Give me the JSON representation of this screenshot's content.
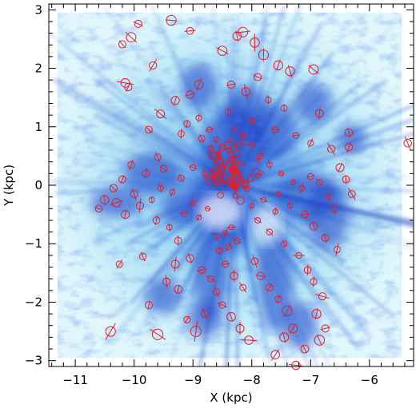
{
  "chart_data": {
    "type": "scatter",
    "xlabel": "X (kpc)",
    "ylabel": "Y (kpc)",
    "xlim": [
      -11.45,
      -5.25
    ],
    "ylim": [
      -3.1,
      3.1
    ],
    "xticks": [
      -11,
      -10,
      -9,
      -8,
      -7,
      -6
    ],
    "yticks": [
      -3,
      -2,
      -1,
      0,
      1,
      2,
      3
    ],
    "xtick_labels": [
      "−11",
      "−10",
      "−9",
      "−8",
      "−7",
      "−6"
    ],
    "ytick_labels": [
      "−3",
      "−2",
      "−1",
      "0",
      "1",
      "2",
      "3"
    ],
    "background": "Blue density map of interstellar dust, brightest near the Sun at (-8.3, 0)",
    "marker_color": "#e0202a",
    "map_colors": {
      "light": "#dff6fb",
      "mid": "#7fd0ee",
      "dark": "#1a3fc8",
      "core": "#0a1a9a"
    },
    "sun_position": [
      -8.3,
      0.0
    ],
    "points": [
      {
        "x": -9.93,
        "y": 2.76
      },
      {
        "x": -9.37,
        "y": 2.82
      },
      {
        "x": -9.05,
        "y": 2.64
      },
      {
        "x": -10.05,
        "y": 2.53
      },
      {
        "x": -10.2,
        "y": 2.41
      },
      {
        "x": -9.68,
        "y": 2.05
      },
      {
        "x": -10.15,
        "y": 1.75
      },
      {
        "x": -10.1,
        "y": 1.68
      },
      {
        "x": -9.55,
        "y": 1.22
      },
      {
        "x": -9.3,
        "y": 1.45
      },
      {
        "x": -9.05,
        "y": 1.55
      },
      {
        "x": -8.9,
        "y": 1.72
      },
      {
        "x": -8.5,
        "y": 2.3
      },
      {
        "x": -8.15,
        "y": 2.62
      },
      {
        "x": -8.25,
        "y": 2.55
      },
      {
        "x": -7.95,
        "y": 2.44
      },
      {
        "x": -7.8,
        "y": 2.23
      },
      {
        "x": -7.55,
        "y": 2.05
      },
      {
        "x": -7.35,
        "y": 1.95
      },
      {
        "x": -6.95,
        "y": 1.98
      },
      {
        "x": -7.9,
        "y": 1.85
      },
      {
        "x": -8.35,
        "y": 1.72
      },
      {
        "x": -8.1,
        "y": 1.6
      },
      {
        "x": -7.72,
        "y": 1.46
      },
      {
        "x": -7.45,
        "y": 1.32
      },
      {
        "x": -6.85,
        "y": 1.23
      },
      {
        "x": -6.35,
        "y": 0.9
      },
      {
        "x": -8.4,
        "y": 1.25
      },
      {
        "x": -8.0,
        "y": 1.1
      },
      {
        "x": -7.6,
        "y": 0.95
      },
      {
        "x": -7.25,
        "y": 0.85
      },
      {
        "x": -7.0,
        "y": 0.72
      },
      {
        "x": -6.65,
        "y": 0.62
      },
      {
        "x": -9.75,
        "y": 0.95
      },
      {
        "x": -9.2,
        "y": 0.88
      },
      {
        "x": -8.85,
        "y": 0.8
      },
      {
        "x": -8.7,
        "y": 0.62
      },
      {
        "x": -8.55,
        "y": 0.5
      },
      {
        "x": -8.45,
        "y": 0.38
      },
      {
        "x": -8.35,
        "y": 0.28
      },
      {
        "x": -8.25,
        "y": 0.18
      },
      {
        "x": -8.2,
        "y": 0.1
      },
      {
        "x": -8.15,
        "y": 0.02
      },
      {
        "x": -8.1,
        "y": -0.05
      },
      {
        "x": -8.28,
        "y": -0.08
      },
      {
        "x": -8.5,
        "y": 0.05
      },
      {
        "x": -8.65,
        "y": 0.12
      },
      {
        "x": -8.8,
        "y": 0.2
      },
      {
        "x": -9.0,
        "y": 0.3
      },
      {
        "x": -9.2,
        "y": 0.12
      },
      {
        "x": -9.35,
        "y": -0.12
      },
      {
        "x": -9.6,
        "y": 0.48
      },
      {
        "x": -10.05,
        "y": 0.35
      },
      {
        "x": -10.2,
        "y": 0.1
      },
      {
        "x": -10.35,
        "y": -0.05
      },
      {
        "x": -10.5,
        "y": -0.25
      },
      {
        "x": -10.6,
        "y": -0.4
      },
      {
        "x": -10.0,
        "y": -0.15
      },
      {
        "x": -9.9,
        "y": -0.35
      },
      {
        "x": -9.8,
        "y": 0.2
      },
      {
        "x": -9.62,
        "y": -0.6
      },
      {
        "x": -9.4,
        "y": -0.72
      },
      {
        "x": -9.15,
        "y": -0.48
      },
      {
        "x": -9.0,
        "y": -0.3
      },
      {
        "x": -8.9,
        "y": -0.55
      },
      {
        "x": -8.75,
        "y": -0.4
      },
      {
        "x": -8.6,
        "y": -0.88
      },
      {
        "x": -8.45,
        "y": -0.82
      },
      {
        "x": -8.35,
        "y": -0.72
      },
      {
        "x": -8.25,
        "y": -0.95
      },
      {
        "x": -8.4,
        "y": -1.05
      },
      {
        "x": -8.55,
        "y": -1.12
      },
      {
        "x": -9.25,
        "y": -0.95
      },
      {
        "x": -9.05,
        "y": -1.25
      },
      {
        "x": -8.85,
        "y": -1.45
      },
      {
        "x": -8.7,
        "y": -1.6
      },
      {
        "x": -8.6,
        "y": -1.82
      },
      {
        "x": -8.5,
        "y": -2.05
      },
      {
        "x": -8.35,
        "y": -2.25
      },
      {
        "x": -8.2,
        "y": -2.45
      },
      {
        "x": -8.05,
        "y": -2.65
      },
      {
        "x": -9.45,
        "y": -1.65
      },
      {
        "x": -9.25,
        "y": -1.78
      },
      {
        "x": -9.75,
        "y": -2.05
      },
      {
        "x": -9.6,
        "y": -2.55
      },
      {
        "x": -9.1,
        "y": -2.3
      },
      {
        "x": -8.8,
        "y": -2.2
      },
      {
        "x": -8.95,
        "y": -2.5
      },
      {
        "x": -9.85,
        "y": -1.22
      },
      {
        "x": -10.25,
        "y": -1.35
      },
      {
        "x": -10.4,
        "y": -2.5
      },
      {
        "x": -7.95,
        "y": -1.3
      },
      {
        "x": -7.85,
        "y": -1.55
      },
      {
        "x": -7.7,
        "y": -1.75
      },
      {
        "x": -7.55,
        "y": -1.95
      },
      {
        "x": -7.4,
        "y": -2.15
      },
      {
        "x": -7.3,
        "y": -2.45
      },
      {
        "x": -7.45,
        "y": -2.6
      },
      {
        "x": -7.6,
        "y": -2.9
      },
      {
        "x": -7.25,
        "y": -3.08
      },
      {
        "x": -7.1,
        "y": -2.8
      },
      {
        "x": -6.85,
        "y": -2.65
      },
      {
        "x": -6.75,
        "y": -2.45
      },
      {
        "x": -6.9,
        "y": -2.2
      },
      {
        "x": -6.8,
        "y": -1.9
      },
      {
        "x": -6.95,
        "y": -1.65
      },
      {
        "x": -7.05,
        "y": -1.45
      },
      {
        "x": -7.2,
        "y": -1.2
      },
      {
        "x": -7.45,
        "y": -1.0
      },
      {
        "x": -7.7,
        "y": -0.8
      },
      {
        "x": -7.9,
        "y": -0.6
      },
      {
        "x": -7.6,
        "y": -0.45
      },
      {
        "x": -7.35,
        "y": -0.35
      },
      {
        "x": -7.1,
        "y": -0.5
      },
      {
        "x": -6.95,
        "y": -0.7
      },
      {
        "x": -6.75,
        "y": -0.9
      },
      {
        "x": -6.55,
        "y": -1.1
      },
      {
        "x": -6.6,
        "y": -0.4
      },
      {
        "x": -6.7,
        "y": -0.2
      },
      {
        "x": -6.85,
        "y": 0.05
      },
      {
        "x": -7.0,
        "y": 0.15
      },
      {
        "x": -7.15,
        "y": -0.05
      },
      {
        "x": -7.3,
        "y": 0.05
      },
      {
        "x": -7.5,
        "y": 0.2
      },
      {
        "x": -7.7,
        "y": 0.35
      },
      {
        "x": -7.85,
        "y": 0.5
      },
      {
        "x": -8.0,
        "y": 0.68
      },
      {
        "x": -8.15,
        "y": 0.85
      },
      {
        "x": -8.3,
        "y": 0.95
      },
      {
        "x": -6.5,
        "y": 0.3
      },
      {
        "x": -6.4,
        "y": 0.1
      },
      {
        "x": -6.3,
        "y": -0.15
      },
      {
        "x": -6.35,
        "y": 0.65
      },
      {
        "x": -5.35,
        "y": 0.72
      },
      {
        "x": -8.9,
        "y": 1.15
      },
      {
        "x": -9.1,
        "y": 1.05
      },
      {
        "x": -8.72,
        "y": 0.95
      },
      {
        "x": -8.6,
        "y": 0.78
      },
      {
        "x": -7.55,
        "y": -0.15
      },
      {
        "x": -7.8,
        "y": -0.25
      },
      {
        "x": -8.0,
        "y": -0.35
      },
      {
        "x": -9.55,
        "y": -0.05
      },
      {
        "x": -9.7,
        "y": -0.25
      },
      {
        "x": -9.5,
        "y": 0.28
      },
      {
        "x": -10.15,
        "y": -0.5
      },
      {
        "x": -10.3,
        "y": -0.3
      },
      {
        "x": -9.3,
        "y": -1.35
      },
      {
        "x": -8.45,
        "y": -1.35
      },
      {
        "x": -8.3,
        "y": -1.55
      },
      {
        "x": -8.15,
        "y": -1.75
      }
    ]
  }
}
